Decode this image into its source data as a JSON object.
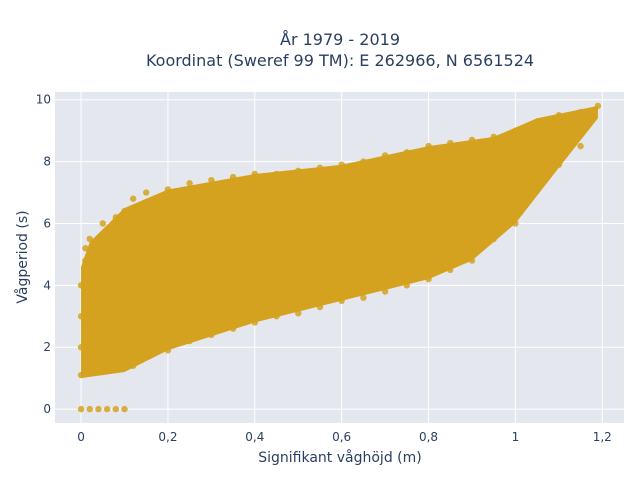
{
  "chart_data": {
    "type": "scatter",
    "title_line1": "År 1979 - 2019",
    "title_line2": "Koordinat (Sweref 99 TM): E 262966, N 6561524",
    "xlabel": "Signifikant våghöjd (m)",
    "ylabel": "Vågperiod (s)",
    "xlim": [
      -0.06,
      1.25
    ],
    "ylim": [
      -0.45,
      10.25
    ],
    "x_ticks": [
      0,
      0.2,
      0.4,
      0.6,
      0.8,
      1,
      1.2
    ],
    "x_tick_labels": [
      "0",
      "0,2",
      "0,4",
      "0,6",
      "0,8",
      "1",
      "1,2"
    ],
    "y_ticks": [
      0,
      2,
      4,
      6,
      8,
      10
    ],
    "y_tick_labels": [
      "0",
      "2",
      "4",
      "6",
      "8",
      "10"
    ],
    "grid": true,
    "marker_color": "#d4a21f",
    "plot_bg": "#e5e7ef",
    "series": [
      {
        "points": [
          [
            0.0,
            0.0
          ],
          [
            0.02,
            0.0
          ],
          [
            0.04,
            0.0
          ],
          [
            0.06,
            0.0
          ],
          [
            0.08,
            0.0
          ],
          [
            0.1,
            0.0
          ],
          [
            0.0,
            1.1
          ],
          [
            0.0,
            2.0
          ],
          [
            0.0,
            3.0
          ],
          [
            0.0,
            4.0
          ],
          [
            0.01,
            4.8
          ],
          [
            0.01,
            5.2
          ],
          [
            0.02,
            1.5
          ],
          [
            0.02,
            3.5
          ],
          [
            0.02,
            5.5
          ],
          [
            0.05,
            1.2
          ],
          [
            0.05,
            4.5
          ],
          [
            0.05,
            6.0
          ],
          [
            0.08,
            1.4
          ],
          [
            0.08,
            3.8
          ],
          [
            0.08,
            6.2
          ],
          [
            0.1,
            1.7
          ],
          [
            0.1,
            4.0
          ],
          [
            0.1,
            6.4
          ],
          [
            0.12,
            1.4
          ],
          [
            0.12,
            6.8
          ],
          [
            0.15,
            1.8
          ],
          [
            0.15,
            3.5
          ],
          [
            0.15,
            5.2
          ],
          [
            0.15,
            7.0
          ],
          [
            0.2,
            1.9
          ],
          [
            0.2,
            3.0
          ],
          [
            0.2,
            4.5
          ],
          [
            0.2,
            6.0
          ],
          [
            0.2,
            7.1
          ],
          [
            0.25,
            2.2
          ],
          [
            0.25,
            4.0
          ],
          [
            0.25,
            6.5
          ],
          [
            0.25,
            7.3
          ],
          [
            0.3,
            2.4
          ],
          [
            0.3,
            3.5
          ],
          [
            0.3,
            5.0
          ],
          [
            0.3,
            6.6
          ],
          [
            0.3,
            7.4
          ],
          [
            0.35,
            2.6
          ],
          [
            0.35,
            4.2
          ],
          [
            0.35,
            7.5
          ],
          [
            0.4,
            2.8
          ],
          [
            0.4,
            3.9
          ],
          [
            0.4,
            5.5
          ],
          [
            0.4,
            7.6
          ],
          [
            0.45,
            3.0
          ],
          [
            0.45,
            4.6
          ],
          [
            0.45,
            7.6
          ],
          [
            0.5,
            3.1
          ],
          [
            0.5,
            4.2
          ],
          [
            0.5,
            5.6
          ],
          [
            0.5,
            7.7
          ],
          [
            0.55,
            3.3
          ],
          [
            0.55,
            5.1
          ],
          [
            0.55,
            7.8
          ],
          [
            0.6,
            3.5
          ],
          [
            0.6,
            4.8
          ],
          [
            0.6,
            6.3
          ],
          [
            0.6,
            7.9
          ],
          [
            0.65,
            3.6
          ],
          [
            0.65,
            5.8
          ],
          [
            0.65,
            8.0
          ],
          [
            0.7,
            3.8
          ],
          [
            0.7,
            5.1
          ],
          [
            0.7,
            6.5
          ],
          [
            0.7,
            8.2
          ],
          [
            0.75,
            4.0
          ],
          [
            0.75,
            6.0
          ],
          [
            0.75,
            8.3
          ],
          [
            0.8,
            4.2
          ],
          [
            0.8,
            5.6
          ],
          [
            0.8,
            6.8
          ],
          [
            0.8,
            8.5
          ],
          [
            0.85,
            4.5
          ],
          [
            0.85,
            6.2
          ],
          [
            0.85,
            8.6
          ],
          [
            0.9,
            4.8
          ],
          [
            0.9,
            6.3
          ],
          [
            0.9,
            7.2
          ],
          [
            0.9,
            8.7
          ],
          [
            0.95,
            5.5
          ],
          [
            0.95,
            7.0
          ],
          [
            0.95,
            8.8
          ],
          [
            1.0,
            6.0
          ],
          [
            1.0,
            7.5
          ],
          [
            1.0,
            9.0
          ],
          [
            1.05,
            7.2
          ],
          [
            1.05,
            8.2
          ],
          [
            1.05,
            9.3
          ],
          [
            1.1,
            7.9
          ],
          [
            1.1,
            8.8
          ],
          [
            1.1,
            9.5
          ],
          [
            1.15,
            8.5
          ],
          [
            1.15,
            9.6
          ],
          [
            1.19,
            9.8
          ]
        ]
      }
    ]
  }
}
